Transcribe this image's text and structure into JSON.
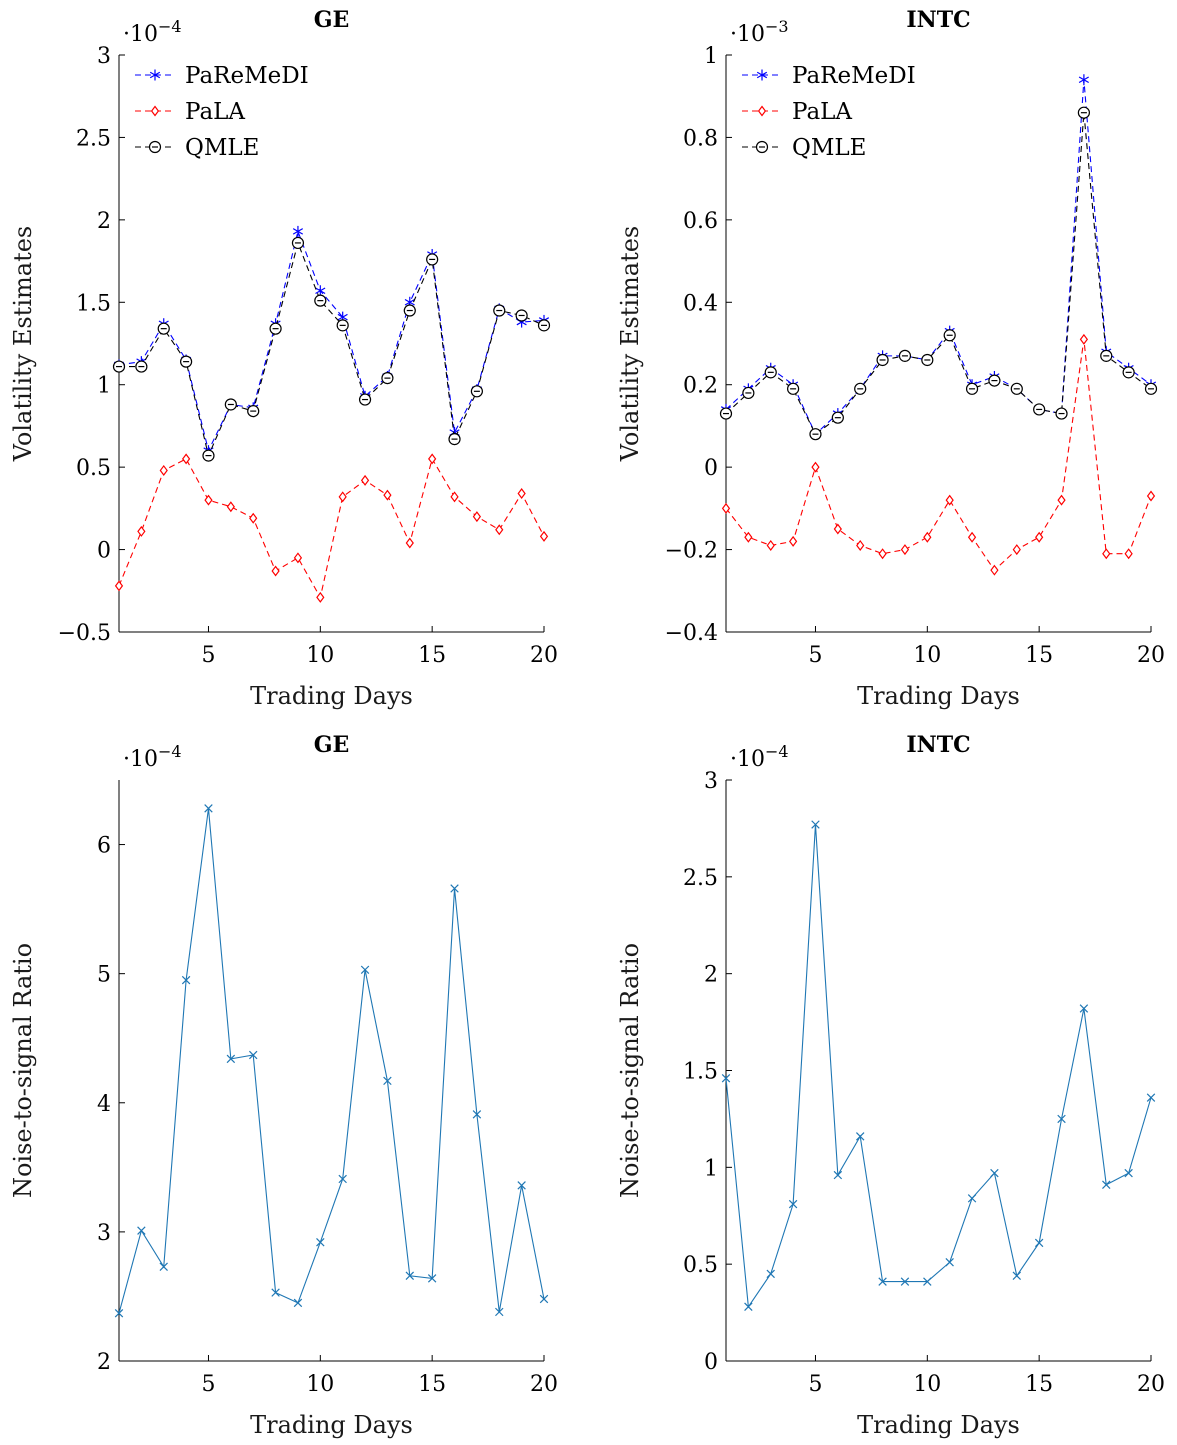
{
  "chart_data": [
    {
      "type": "line",
      "title": "GE",
      "xlabel": "Trading Days",
      "ylabel": "Volatility Estimates",
      "multiplier": "·10",
      "multiplier_exp": "−4",
      "xlim": [
        1,
        20
      ],
      "ylim": [
        -0.5,
        3
      ],
      "xticks": [
        5,
        10,
        15,
        20
      ],
      "xtick_labels": [
        "5",
        "10",
        "15",
        "20"
      ],
      "yticks": [
        -0.5,
        0,
        0.5,
        1,
        1.5,
        2,
        2.5,
        3
      ],
      "ytick_labels": [
        "−0.5",
        "0",
        "0.5",
        "1",
        "1.5",
        "2",
        "2.5",
        "3"
      ],
      "legend": "top-left",
      "x": [
        1,
        2,
        3,
        4,
        5,
        6,
        7,
        8,
        9,
        10,
        11,
        12,
        13,
        14,
        15,
        16,
        17,
        18,
        19,
        20
      ],
      "series": [
        {
          "name": "PaReMeDI",
          "color": "#0000ff",
          "marker": "asterisk",
          "values": [
            1.12,
            1.14,
            1.37,
            1.15,
            0.6,
            0.88,
            0.86,
            1.37,
            1.93,
            1.57,
            1.41,
            0.93,
            1.05,
            1.5,
            1.79,
            0.71,
            0.97,
            1.46,
            1.38,
            1.39
          ]
        },
        {
          "name": "PaLA",
          "color": "#ff0000",
          "marker": "diamond",
          "values": [
            -0.22,
            0.11,
            0.48,
            0.55,
            0.3,
            0.26,
            0.19,
            -0.13,
            -0.05,
            -0.29,
            0.32,
            0.42,
            0.33,
            0.04,
            0.55,
            0.32,
            0.2,
            0.12,
            0.34,
            0.08
          ]
        },
        {
          "name": "QMLE",
          "color": "#000000",
          "marker": "circle",
          "values": [
            1.11,
            1.11,
            1.34,
            1.14,
            0.57,
            0.88,
            0.84,
            1.34,
            1.86,
            1.51,
            1.36,
            0.91,
            1.04,
            1.45,
            1.76,
            0.67,
            0.96,
            1.45,
            1.42,
            1.36
          ]
        }
      ]
    },
    {
      "type": "line",
      "title": "INTC",
      "xlabel": "Trading Days",
      "ylabel": "Volatility Estimates",
      "multiplier": "·10",
      "multiplier_exp": "−3",
      "xlim": [
        1,
        20
      ],
      "ylim": [
        -0.4,
        1
      ],
      "xticks": [
        5,
        10,
        15,
        20
      ],
      "xtick_labels": [
        "5",
        "10",
        "15",
        "20"
      ],
      "yticks": [
        -0.4,
        -0.2,
        0,
        0.2,
        0.4,
        0.6,
        0.8,
        1
      ],
      "ytick_labels": [
        "−0.4",
        "−0.2",
        "0",
        "0.2",
        "0.4",
        "0.6",
        "0.8",
        "1"
      ],
      "legend": "top-left",
      "x": [
        1,
        2,
        3,
        4,
        5,
        6,
        7,
        8,
        9,
        10,
        11,
        12,
        13,
        14,
        15,
        16,
        17,
        18,
        19,
        20
      ],
      "series": [
        {
          "name": "PaReMeDI",
          "color": "#0000ff",
          "marker": "asterisk",
          "values": [
            0.14,
            0.19,
            0.24,
            0.2,
            0.08,
            0.13,
            0.19,
            0.27,
            0.27,
            0.26,
            0.33,
            0.2,
            0.22,
            0.19,
            0.14,
            0.13,
            0.94,
            0.28,
            0.24,
            0.2
          ]
        },
        {
          "name": "PaLA",
          "color": "#ff0000",
          "marker": "diamond",
          "values": [
            -0.1,
            -0.17,
            -0.19,
            -0.18,
            0.0,
            -0.15,
            -0.19,
            -0.21,
            -0.2,
            -0.17,
            -0.08,
            -0.17,
            -0.25,
            -0.2,
            -0.17,
            -0.08,
            0.31,
            -0.21,
            -0.21,
            -0.07
          ]
        },
        {
          "name": "QMLE",
          "color": "#000000",
          "marker": "circle",
          "values": [
            0.13,
            0.18,
            0.23,
            0.19,
            0.08,
            0.12,
            0.19,
            0.26,
            0.27,
            0.26,
            0.32,
            0.19,
            0.21,
            0.19,
            0.14,
            0.13,
            0.86,
            0.27,
            0.23,
            0.19
          ]
        }
      ]
    },
    {
      "type": "line",
      "title": "GE",
      "xlabel": "Trading Days",
      "ylabel": "Noise-to-signal Ratio",
      "multiplier": "·10",
      "multiplier_exp": "−4",
      "xlim": [
        1,
        20
      ],
      "ylim": [
        2,
        6.5
      ],
      "xticks": [
        5,
        10,
        15,
        20
      ],
      "xtick_labels": [
        "5",
        "10",
        "15",
        "20"
      ],
      "yticks": [
        2,
        3,
        4,
        5,
        6
      ],
      "ytick_labels": [
        "2",
        "3",
        "4",
        "5",
        "6"
      ],
      "x": [
        1,
        2,
        3,
        4,
        5,
        6,
        7,
        8,
        9,
        10,
        11,
        12,
        13,
        14,
        15,
        16,
        17,
        18,
        19,
        20
      ],
      "series": [
        {
          "color": "#1f77b4",
          "marker": "x",
          "values": [
            2.37,
            3.01,
            2.73,
            4.95,
            6.28,
            4.34,
            4.37,
            2.53,
            2.45,
            2.92,
            3.41,
            5.03,
            4.17,
            2.66,
            2.64,
            5.66,
            3.91,
            2.38,
            3.36,
            2.48
          ]
        }
      ]
    },
    {
      "type": "line",
      "title": "INTC",
      "xlabel": "Trading Days",
      "ylabel": "Noise-to-signal Ratio",
      "multiplier": "·10",
      "multiplier_exp": "−4",
      "xlim": [
        1,
        20
      ],
      "ylim": [
        0,
        3
      ],
      "xticks": [
        5,
        10,
        15,
        20
      ],
      "xtick_labels": [
        "5",
        "10",
        "15",
        "20"
      ],
      "yticks": [
        0,
        0.5,
        1,
        1.5,
        2,
        2.5,
        3
      ],
      "ytick_labels": [
        "0",
        "0.5",
        "1",
        "1.5",
        "2",
        "2.5",
        "3"
      ],
      "x": [
        1,
        2,
        3,
        4,
        5,
        6,
        7,
        8,
        9,
        10,
        11,
        12,
        13,
        14,
        15,
        16,
        17,
        18,
        19,
        20
      ],
      "series": [
        {
          "color": "#1f77b4",
          "marker": "x",
          "values": [
            1.46,
            0.28,
            0.45,
            0.81,
            2.77,
            0.96,
            1.16,
            0.41,
            0.41,
            0.41,
            0.51,
            0.84,
            0.97,
            0.44,
            0.61,
            1.25,
            1.82,
            0.91,
            0.97,
            1.36
          ]
        }
      ]
    }
  ]
}
